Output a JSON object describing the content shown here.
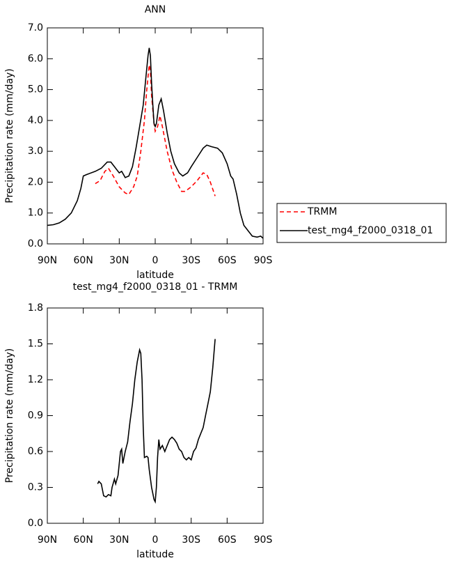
{
  "chart_data": [
    {
      "type": "line",
      "title": "ANN",
      "xlabel": "latitude",
      "ylabel": "Precipitation rate (mm/day)",
      "xlim": [
        90,
        -90
      ],
      "ylim": [
        0,
        7
      ],
      "xticks": [
        {
          "value": 90,
          "label": "90N"
        },
        {
          "value": 60,
          "label": "60N"
        },
        {
          "value": 30,
          "label": "30N"
        },
        0,
        {
          "value": -30,
          "label": "30S"
        },
        {
          "value": -60,
          "label": "60S"
        },
        {
          "value": -90,
          "label": "90S"
        }
      ],
      "yticks": [
        {
          "value": 0,
          "label": "0.0"
        },
        {
          "value": 1,
          "label": "1.0"
        },
        {
          "value": 2,
          "label": "2.0"
        },
        {
          "value": 3,
          "label": "3.0"
        },
        {
          "value": 4,
          "label": "4.0"
        },
        {
          "value": 5,
          "label": "5.0"
        },
        {
          "value": 6,
          "label": "6.0"
        },
        {
          "value": 7,
          "label": "7.0"
        }
      ],
      "legend": "right",
      "series": [
        {
          "name": "TRMM",
          "color": "#ff0000",
          "dashed": true,
          "x": [
            50,
            46,
            42,
            39,
            35,
            30,
            25,
            22,
            18,
            15,
            12,
            9,
            7,
            5,
            4,
            3,
            1,
            0,
            -2,
            -4,
            -6,
            -10,
            -14,
            -18,
            -22,
            -25,
            -30,
            -35,
            -40,
            -43,
            -46,
            -50
          ],
          "values": [
            1.95,
            2.05,
            2.35,
            2.45,
            2.2,
            1.85,
            1.65,
            1.6,
            1.85,
            2.2,
            3.0,
            4.0,
            5.0,
            5.8,
            5.6,
            4.8,
            3.9,
            3.65,
            3.8,
            4.15,
            3.8,
            3.0,
            2.4,
            2.0,
            1.7,
            1.7,
            1.85,
            2.05,
            2.3,
            2.25,
            2.0,
            1.55
          ]
        },
        {
          "name": "test_mg4_f2000_0318_01",
          "color": "#000000",
          "dashed": false,
          "x": [
            90,
            85,
            80,
            75,
            70,
            65,
            62,
            60,
            57,
            50,
            45,
            40,
            37,
            33,
            30,
            28,
            25,
            22,
            19,
            16,
            13,
            10,
            8,
            6,
            5,
            4,
            3,
            2,
            1,
            0,
            -1,
            -3,
            -5,
            -7,
            -10,
            -13,
            -16,
            -20,
            -23,
            -27,
            -30,
            -35,
            -40,
            -43,
            -47,
            -52,
            -56,
            -60,
            -63,
            -65,
            -68,
            -71,
            -74,
            -78,
            -81,
            -85,
            -88,
            -90
          ],
          "values": [
            0.6,
            0.62,
            0.68,
            0.8,
            1.0,
            1.4,
            1.8,
            2.2,
            2.25,
            2.35,
            2.45,
            2.65,
            2.65,
            2.45,
            2.3,
            2.35,
            2.15,
            2.2,
            2.5,
            3.1,
            3.8,
            4.5,
            5.3,
            6.1,
            6.35,
            6.1,
            5.2,
            4.5,
            3.9,
            3.8,
            3.9,
            4.5,
            4.7,
            4.3,
            3.6,
            3.0,
            2.6,
            2.3,
            2.2,
            2.3,
            2.5,
            2.8,
            3.1,
            3.2,
            3.15,
            3.1,
            2.95,
            2.6,
            2.2,
            2.1,
            1.6,
            1.0,
            0.6,
            0.4,
            0.25,
            0.22,
            0.25,
            0.18
          ]
        }
      ]
    },
    {
      "type": "line",
      "title": "test_mg4_f2000_0318_01 - TRMM",
      "xlabel": "latitude",
      "ylabel": "Precipitation rate (mm/day)",
      "xlim": [
        90,
        -90
      ],
      "ylim": [
        0,
        1.8
      ],
      "xticks": [
        {
          "value": 90,
          "label": "90N"
        },
        {
          "value": 60,
          "label": "60N"
        },
        {
          "value": 30,
          "label": "30N"
        },
        0,
        {
          "value": -30,
          "label": "30S"
        },
        {
          "value": -60,
          "label": "60S"
        },
        {
          "value": -90,
          "label": "90S"
        }
      ],
      "yticks": [
        {
          "value": 0,
          "label": "0.0"
        },
        0.3,
        0.6,
        0.9,
        1.2,
        1.5,
        1.8
      ],
      "series": [
        {
          "color": "#000000",
          "dashed": false,
          "x": [
            48,
            47,
            45,
            43,
            41,
            39,
            37,
            36,
            34,
            33,
            31,
            29,
            28,
            27,
            25,
            23,
            21,
            19,
            17,
            15,
            13,
            12,
            11,
            10,
            9,
            7,
            6,
            5,
            3,
            1,
            0,
            -1,
            -2,
            -3,
            -4,
            -6,
            -8,
            -10,
            -12,
            -14,
            -16,
            -18,
            -20,
            -22,
            -24,
            -26,
            -28,
            -30,
            -32,
            -34,
            -36,
            -38,
            -40,
            -42,
            -44,
            -46,
            -48,
            -50
          ],
          "values": [
            0.33,
            0.35,
            0.33,
            0.23,
            0.22,
            0.24,
            0.23,
            0.3,
            0.37,
            0.33,
            0.4,
            0.6,
            0.62,
            0.5,
            0.6,
            0.68,
            0.85,
            1.0,
            1.2,
            1.35,
            1.45,
            1.42,
            1.2,
            0.8,
            0.55,
            0.56,
            0.55,
            0.45,
            0.3,
            0.2,
            0.18,
            0.3,
            0.55,
            0.7,
            0.62,
            0.65,
            0.6,
            0.65,
            0.7,
            0.72,
            0.7,
            0.67,
            0.62,
            0.6,
            0.55,
            0.53,
            0.55,
            0.53,
            0.6,
            0.63,
            0.7,
            0.75,
            0.8,
            0.9,
            1.0,
            1.1,
            1.3,
            1.54
          ]
        }
      ]
    }
  ]
}
